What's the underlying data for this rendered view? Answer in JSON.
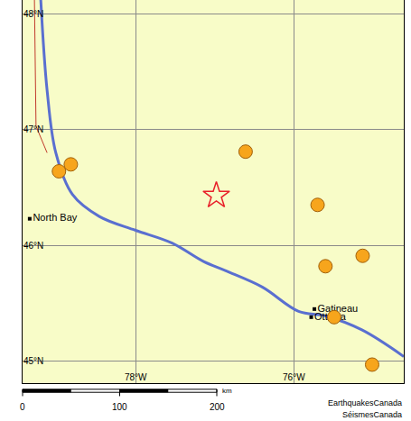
{
  "chart_data": {
    "type": "map",
    "xlim": [
      -79.43,
      -74.61
    ],
    "ylim": [
      44.81,
      48.12
    ],
    "xticks": [
      {
        "value": -78,
        "label": "78°W"
      },
      {
        "value": -76,
        "label": "76°W"
      }
    ],
    "yticks": [
      {
        "value": 45,
        "label": "45°N"
      },
      {
        "value": 46,
        "label": "46°N"
      },
      {
        "value": 47,
        "label": "47°N"
      },
      {
        "value": 48,
        "label": "48°N"
      }
    ],
    "grid": true,
    "events": {
      "x": [
        -78.97,
        -78.82,
        -76.61,
        -75.7,
        -75.6,
        -75.13,
        -75.49,
        -75.01
      ],
      "y": [
        46.64,
        46.7,
        46.81,
        46.35,
        45.82,
        45.91,
        45.38,
        44.97
      ],
      "color": "#f7a51c",
      "marker": "circle"
    },
    "epicenter": {
      "x": [
        -76.98
      ],
      "y": [
        46.43
      ],
      "color": "#e8202a",
      "marker": "star-open"
    },
    "cities": {
      "labels": [
        "North Bay",
        "Gatineau",
        "Ottawa"
      ],
      "x": [
        -79.34,
        -75.74,
        -75.78
      ],
      "y": [
        46.23,
        45.45,
        45.38
      ],
      "color": "#000000",
      "marker": "square"
    },
    "river": {
      "x": [
        -79.2,
        -79.12,
        -79.01,
        -78.8,
        -78.46,
        -78.0,
        -77.54,
        -77.14,
        -76.86,
        -76.4,
        -75.94,
        -75.6,
        -75.14,
        -74.61
      ],
      "y": [
        48.12,
        47.34,
        46.8,
        46.44,
        46.25,
        46.13,
        46.02,
        45.86,
        45.78,
        45.64,
        45.43,
        45.39,
        45.27,
        45.04
      ],
      "color": "#5a6fd0",
      "line_style": "solid"
    },
    "border": {
      "x": [
        -79.28,
        -79.26,
        -79.12
      ],
      "y": [
        48.12,
        47.03,
        46.8
      ],
      "color": "#c0392b",
      "line_style": "solid"
    },
    "scale_bar": {
      "ticks": [
        0,
        100,
        200
      ],
      "unit": "km"
    },
    "credits": [
      "EarthquakesCanada",
      "SéismesCanada"
    ]
  }
}
